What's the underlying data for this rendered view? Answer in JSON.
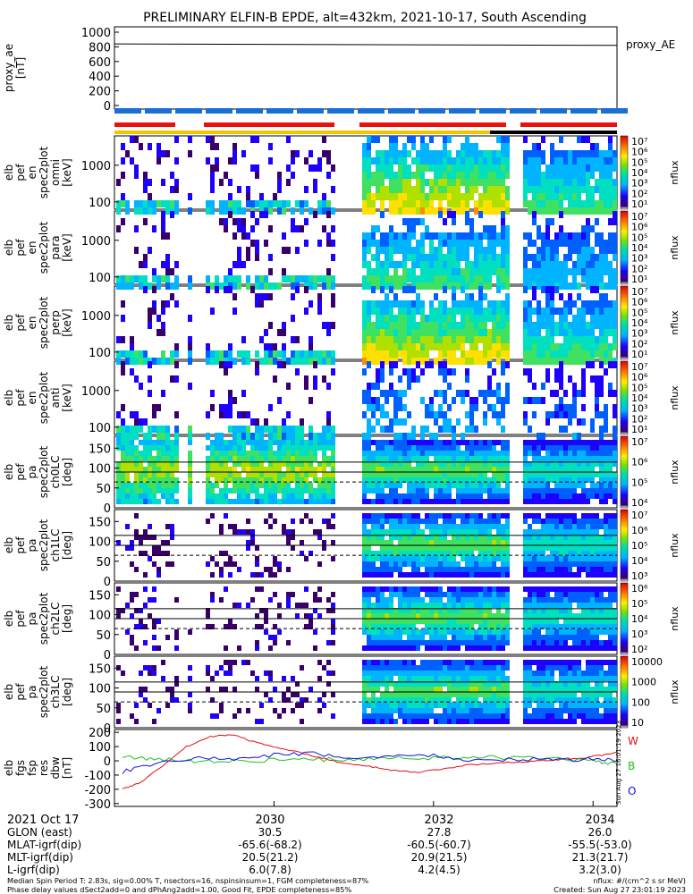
{
  "title": "PRELIMINARY ELFIN-B EPDE, alt=432km, 2021-10-17, South Ascending",
  "colors": {
    "bar_blue": "#1a6fd6",
    "bar_red": "#e8120c",
    "bar_yellow": "#f5c400",
    "bar_black": "#000000",
    "line_r": "#e01010",
    "line_g": "#20c020",
    "line_b": "#1010e0"
  },
  "chart_data": [
    {
      "type": "line",
      "panel": "proxy_ae",
      "ylabel_lines": [
        "proxy_ae",
        "[nT]"
      ],
      "ylim": [
        0,
        1000
      ],
      "yticks": [
        "1000",
        "800",
        "600",
        "400",
        "200",
        "0"
      ],
      "series": [
        {
          "name": "proxy_AE",
          "x": [
            2028.0,
            2034.3
          ],
          "values": [
            820,
            800
          ]
        }
      ]
    },
    {
      "type": "heatmap",
      "panel": "pef_en_omni",
      "ylabel_lines": [
        "elb",
        "pef",
        "en",
        "spec2plot",
        "omni",
        "[keV]"
      ],
      "yticks": [
        "1000",
        "100"
      ],
      "yscale": "log",
      "colorbar": {
        "label": "nflux",
        "ticks": [
          "10⁷",
          "10⁶",
          "10⁵",
          "10⁴",
          "10³",
          "10²",
          "10¹"
        ]
      }
    },
    {
      "type": "heatmap",
      "panel": "pef_en_para",
      "ylabel_lines": [
        "elb",
        "pef",
        "en",
        "spec2plot",
        "para",
        "[keV]"
      ],
      "yticks": [
        "1000",
        "100"
      ],
      "yscale": "log",
      "colorbar": {
        "label": "nflux",
        "ticks": [
          "10⁷",
          "10⁶",
          "10⁵",
          "10⁴",
          "10³",
          "10²",
          "10¹"
        ]
      }
    },
    {
      "type": "heatmap",
      "panel": "pef_en_perp",
      "ylabel_lines": [
        "elb",
        "pef",
        "en",
        "spec2plot",
        "perp",
        "[keV]"
      ],
      "yticks": [
        "1000",
        "100"
      ],
      "yscale": "log",
      "colorbar": {
        "label": "nflux",
        "ticks": [
          "10⁷",
          "10⁶",
          "10⁵",
          "10⁴",
          "10³",
          "10²",
          "10¹"
        ]
      }
    },
    {
      "type": "heatmap",
      "panel": "pef_en_anti",
      "ylabel_lines": [
        "elb",
        "pef",
        "en",
        "spec2plot",
        "anti",
        "[keV]"
      ],
      "yticks": [
        "1000",
        "100"
      ],
      "yscale": "log",
      "colorbar": {
        "label": "nflux",
        "ticks": [
          "10⁷",
          "10⁶",
          "10⁵",
          "10⁴",
          "10³",
          "10²",
          "10¹"
        ]
      }
    },
    {
      "type": "heatmap",
      "panel": "pef_pa_ch0LC",
      "ylabel_lines": [
        "elb",
        "pef",
        "pa",
        "spec2plot",
        "ch0LC",
        "[deg]"
      ],
      "yticks": [
        "150",
        "100",
        "50",
        "0"
      ],
      "ylim": [
        0,
        180
      ],
      "colorbar": {
        "label": "nflux",
        "ticks": [
          "10⁷",
          "10⁶",
          "10⁵",
          "10⁴"
        ]
      }
    },
    {
      "type": "heatmap",
      "panel": "pef_pa_ch1LC",
      "ylabel_lines": [
        "elb",
        "pef",
        "pa",
        "spec2plot",
        "ch1LC",
        "[deg]"
      ],
      "yticks": [
        "150",
        "100",
        "50",
        "0"
      ],
      "ylim": [
        0,
        180
      ],
      "colorbar": {
        "label": "nflux",
        "ticks": [
          "10⁷",
          "10⁶",
          "10⁵",
          "10⁴",
          "10³"
        ]
      }
    },
    {
      "type": "heatmap",
      "panel": "pef_pa_ch2LC",
      "ylabel_lines": [
        "elb",
        "pef",
        "pa",
        "spec2plot",
        "ch2LC",
        "[deg]"
      ],
      "yticks": [
        "150",
        "100",
        "50",
        "0"
      ],
      "ylim": [
        0,
        180
      ],
      "colorbar": {
        "label": "nflux",
        "ticks": [
          "10⁶",
          "10⁵",
          "10⁴",
          "10³",
          "10²"
        ]
      }
    },
    {
      "type": "heatmap",
      "panel": "pef_pa_ch3LC",
      "ylabel_lines": [
        "elb",
        "pef",
        "pa",
        "spec2plot",
        "ch3LC",
        "[deg]"
      ],
      "yticks": [
        "150",
        "100",
        "50",
        "0"
      ],
      "ylim": [
        0,
        180
      ],
      "colorbar": {
        "label": "nflux",
        "ticks": [
          "10000",
          "1000",
          "100",
          "10"
        ]
      }
    },
    {
      "type": "line",
      "panel": "fgs_res_dbw",
      "ylabel_lines": [
        "elb",
        "fgs",
        "fsp",
        "res",
        "dbw",
        "[nT]"
      ],
      "ylim": [
        -320,
        220
      ],
      "yticks": [
        "200",
        "100",
        "0",
        "-100",
        "-200",
        "-300"
      ],
      "legend": [
        "W",
        "B",
        "O"
      ],
      "series": [
        {
          "name": "W",
          "color": "red",
          "x": [
            2028.1,
            2028.3,
            2028.6,
            2028.9,
            2029.2,
            2029.5,
            2029.7,
            2030.0,
            2030.3,
            2030.6,
            2030.9,
            2031.2,
            2031.5,
            2031.8,
            2032.1,
            2032.4,
            2032.7,
            2033.0,
            2033.3,
            2033.6,
            2033.9,
            2034.1,
            2034.3
          ],
          "values": [
            -200,
            -160,
            -40,
            100,
            170,
            185,
            140,
            100,
            60,
            20,
            -20,
            -40,
            -70,
            -80,
            -60,
            -30,
            -20,
            -10,
            0,
            10,
            20,
            40,
            60
          ]
        },
        {
          "name": "B",
          "color": "green",
          "x": [
            2028.1,
            2028.5,
            2029.0,
            2029.5,
            2030.0,
            2030.5,
            2031.0,
            2031.5,
            2032.0,
            2032.5,
            2033.0,
            2033.5,
            2034.0,
            2034.3
          ],
          "values": [
            30,
            10,
            0,
            0,
            5,
            10,
            10,
            20,
            20,
            25,
            20,
            15,
            0,
            -20
          ]
        },
        {
          "name": "O",
          "color": "blue",
          "x": [
            2028.1,
            2028.5,
            2029.0,
            2029.5,
            2030.0,
            2030.5,
            2031.0,
            2031.5,
            2032.0,
            2032.5,
            2033.0,
            2033.5,
            2034.0,
            2034.3
          ],
          "values": [
            -80,
            -20,
            20,
            10,
            40,
            50,
            20,
            30,
            40,
            0,
            10,
            10,
            10,
            0
          ]
        }
      ]
    }
  ],
  "time_axis": {
    "date_label": "2021 Oct 17",
    "ticks": [
      "2030",
      "2032",
      "2034"
    ],
    "ylim_note": ""
  },
  "ephemeris": {
    "rows": [
      {
        "label": "GLON (east)",
        "values": [
          "30.5",
          "27.8",
          "26.0"
        ]
      },
      {
        "label": "MLAT-igrf(dip)",
        "values": [
          "-65.6(-68.2)",
          "-60.5(-60.7)",
          "-55.5(-53.0)"
        ]
      },
      {
        "label": "MLT-igrf(dip)",
        "values": [
          "20.5(21.2)",
          "20.9(21.5)",
          "21.3(21.7)"
        ]
      },
      {
        "label": "L-igrf(dip)",
        "values": [
          "6.0(7.8)",
          "4.2(4.5)",
          "3.2(3.0)"
        ]
      }
    ]
  },
  "footer": {
    "left_line1": "Median Spin Period T: 2.83s, sig=0.00% T, nsectors=16, nspinsinsum=1, FGM completeness=87%",
    "left_line2": "Phase delay values dSect2add=0 and dPhAng2add=1.00, Good Fit, EPDE completeness=85%",
    "right_line1": "nflux: #/(cm^2 s sr MeV)",
    "right_line2": "Created: Sun Aug 27 23:01:19 2023",
    "vertical_stamp": "Sun Aug 27 16:01:19 2023"
  },
  "right_label_ae": "proxy_AE"
}
